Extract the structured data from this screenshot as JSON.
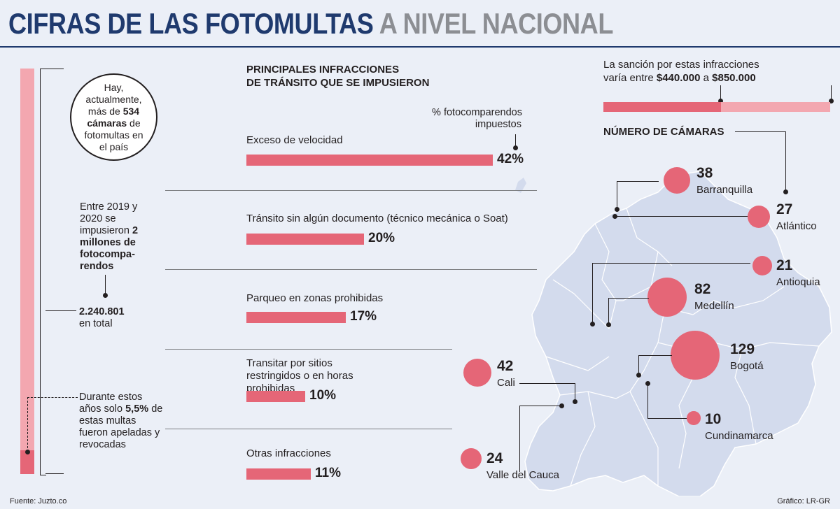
{
  "title": {
    "dark": "CIFRAS DE LAS FOTOMULTAS",
    "light": "A NIVEL NACIONAL"
  },
  "left": {
    "circle_text": {
      "pre": "Hay, actualmente, más de ",
      "bold": "534 cámaras",
      "post": " de fotomultas en el país"
    },
    "period_text": {
      "pre": "Entre 2019 y 2020 se impusieron ",
      "bold": "2 millones de fotocompa-rendos"
    },
    "total": {
      "bold": "2.240.801",
      "post": "en total"
    },
    "appeal": {
      "pre": "Durante estos años solo ",
      "bold": "5,5%",
      "post": " de estas multas fueron apeladas y revocadas"
    },
    "appeal_fraction": 0.055
  },
  "infractions": {
    "heading_line1": "PRINCIPALES INFRACCIONES",
    "heading_line2": "DE TRÁNSITO QUE SE IMPUSIERON",
    "legend_line1": "% fotocomparendos",
    "legend_line2": "impuestos"
  },
  "chart_data": {
    "type": "bar",
    "title": "PRINCIPALES INFRACCIONES DE TRÁNSITO QUE SE IMPUSIERON",
    "categories": [
      "Exceso de velocidad",
      "Tránsito sin algún documento (técnico mecánica o Soat)",
      "Parqueo en zonas prohibidas",
      "Transitar por sitios restringidos o en horas prohibidas",
      "Otras infracciones"
    ],
    "values": [
      42,
      20,
      17,
      10,
      11
    ],
    "value_labels": [
      "42%",
      "20%",
      "17%",
      "10%",
      "11%"
    ],
    "cameras": {
      "title": "NÚMERO DE CÁMARAS",
      "cities": [
        "Barranquilla",
        "Atlántico",
        "Antioquia",
        "Medellín",
        "Bogotá",
        "Cali",
        "Cundinamarca",
        "Valle del Cauca"
      ],
      "values": [
        38,
        27,
        21,
        82,
        129,
        42,
        10,
        24
      ]
    }
  },
  "sanction": {
    "pre": "La sanción por estas infracciones",
    "mid": "varía entre ",
    "min": "$440.000",
    "conj": " a ",
    "max": "$850.000",
    "min_value": 440000,
    "max_value": 850000
  },
  "colors": {
    "accent": "#e56677",
    "light_accent": "#f3a7b0",
    "title_dark": "#1f3a6e",
    "title_light": "#8c8e93",
    "map_fill": "#d3dbed",
    "map_stroke": "#ffffff",
    "background": "#ebeff7"
  },
  "footer": {
    "source": "Fuente: Juzto.co",
    "credit": "Gráfico: LR-GR"
  }
}
